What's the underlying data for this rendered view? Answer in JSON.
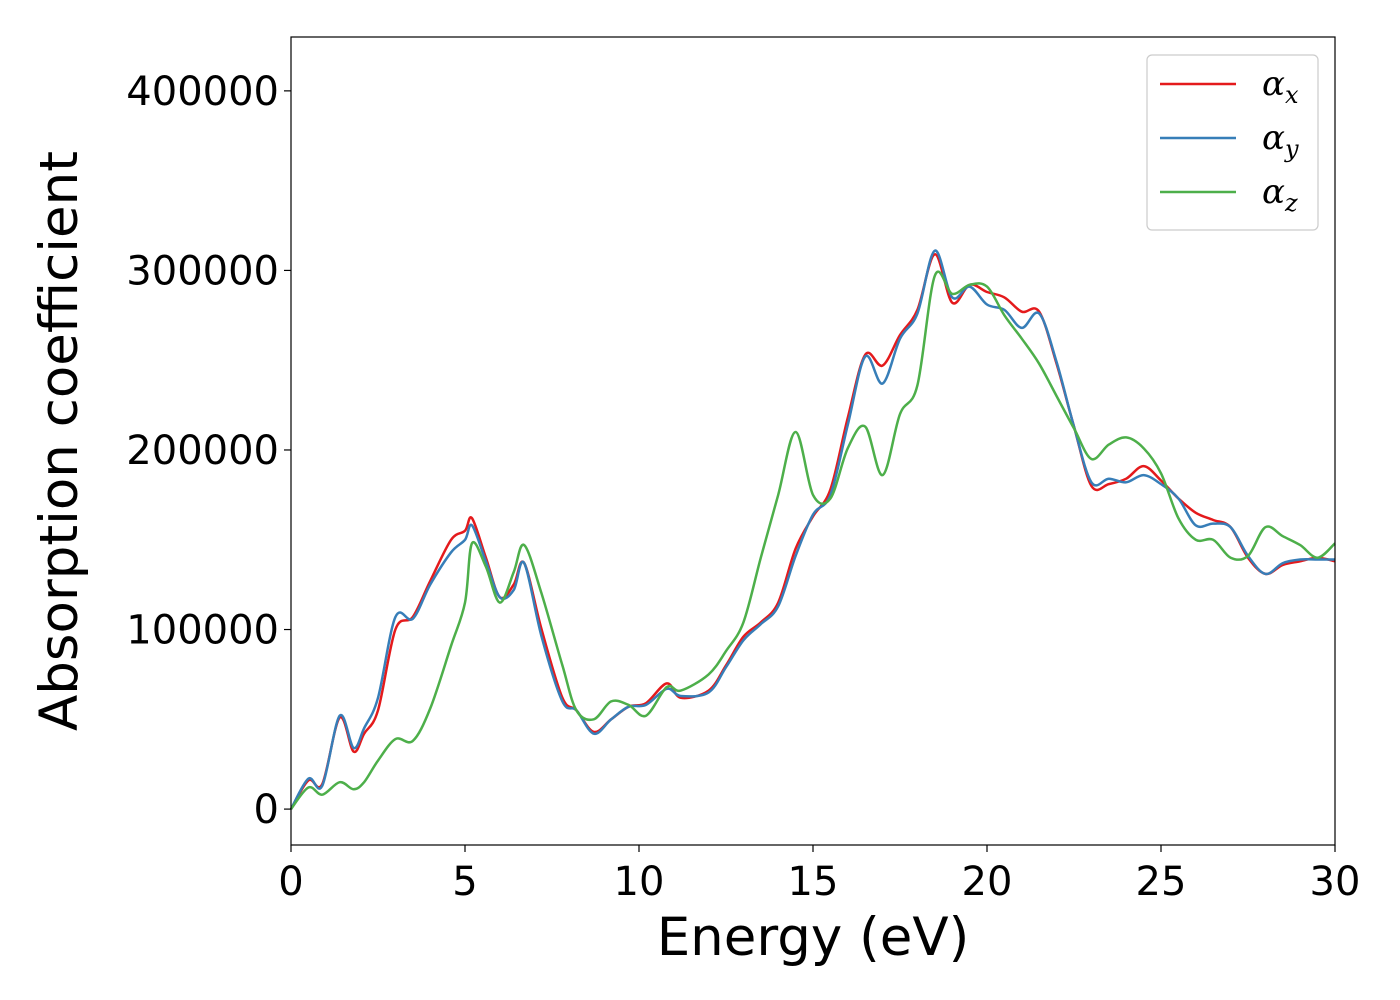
{
  "chart_data": {
    "type": "line",
    "xlabel": "Energy (eV)",
    "ylabel": "Absorption coefficient",
    "xlim": [
      0,
      30
    ],
    "ylim": [
      -20000,
      430000
    ],
    "xticks": [
      0,
      5,
      10,
      15,
      20,
      25,
      30
    ],
    "yticks": [
      0,
      100000,
      200000,
      300000,
      400000
    ],
    "grid": false,
    "legend_position": "top-right",
    "series": [
      {
        "name": "α_x",
        "legend_base": "α",
        "legend_sub": "x",
        "color": "#e41a1c",
        "x": [
          0,
          0.5,
          0.9,
          1.4,
          1.8,
          2.1,
          2.5,
          3.0,
          3.5,
          4.0,
          4.6,
          5.0,
          5.2,
          5.6,
          6.0,
          6.4,
          6.7,
          7.2,
          7.8,
          8.2,
          8.7,
          9.2,
          9.7,
          10.2,
          10.8,
          11.2,
          12.0,
          12.5,
          13.0,
          13.5,
          14.0,
          14.5,
          15.0,
          15.5,
          16.0,
          16.5,
          17.0,
          17.5,
          18.0,
          18.5,
          19.0,
          19.5,
          20.0,
          20.5,
          21.0,
          21.5,
          22.0,
          22.5,
          23.0,
          23.5,
          24.0,
          24.5,
          25.0,
          25.5,
          26.0,
          26.5,
          27.0,
          27.5,
          28.0,
          28.5,
          29.0,
          29.5,
          30.0
        ],
        "values": [
          0,
          16000,
          14000,
          51000,
          32000,
          42000,
          55000,
          100000,
          107000,
          127000,
          150000,
          155000,
          162000,
          140000,
          118000,
          125000,
          137000,
          100000,
          62000,
          55000,
          43000,
          50000,
          57000,
          59000,
          70000,
          62000,
          66000,
          80000,
          96000,
          104000,
          115000,
          145000,
          163000,
          178000,
          218000,
          253000,
          247000,
          264000,
          278000,
          309000,
          282000,
          292000,
          288000,
          285000,
          277000,
          277000,
          248000,
          213000,
          180000,
          181000,
          184000,
          191000,
          183000,
          173000,
          165000,
          161000,
          157000,
          140000,
          131000,
          136000,
          138000,
          140000,
          138000
        ]
      },
      {
        "name": "α_y",
        "legend_base": "α",
        "legend_sub": "y",
        "color": "#377eb8",
        "x": [
          0,
          0.5,
          0.9,
          1.4,
          1.8,
          2.1,
          2.5,
          3.0,
          3.5,
          4.0,
          4.6,
          5.0,
          5.2,
          5.6,
          6.0,
          6.4,
          6.7,
          7.2,
          7.8,
          8.2,
          8.7,
          9.2,
          9.7,
          10.2,
          10.8,
          11.2,
          12.0,
          12.5,
          13.0,
          13.5,
          14.0,
          14.5,
          15.0,
          15.5,
          16.0,
          16.5,
          17.0,
          17.5,
          18.0,
          18.5,
          19.0,
          19.5,
          20.0,
          20.5,
          21.0,
          21.5,
          22.0,
          22.5,
          23.0,
          23.5,
          24.0,
          24.5,
          25.0,
          25.5,
          26.0,
          26.5,
          27.0,
          27.5,
          28.0,
          28.5,
          29.0,
          29.5,
          30.0
        ],
        "values": [
          0,
          17000,
          13000,
          52000,
          34000,
          45000,
          62000,
          107000,
          106000,
          125000,
          143000,
          150000,
          158000,
          138000,
          118000,
          122000,
          137000,
          96000,
          60000,
          55000,
          42000,
          50000,
          57000,
          58000,
          67000,
          63000,
          65000,
          79000,
          94000,
          103000,
          113000,
          141000,
          164000,
          175000,
          214000,
          252000,
          237000,
          262000,
          276000,
          311000,
          285000,
          291000,
          281000,
          278000,
          268000,
          276000,
          249000,
          213000,
          182000,
          184000,
          182000,
          186000,
          181000,
          173000,
          158000,
          159000,
          157000,
          141000,
          131000,
          137000,
          139000,
          139000,
          139000
        ]
      },
      {
        "name": "α_z",
        "legend_base": "α",
        "legend_sub": "z",
        "color": "#4daf4a",
        "x": [
          0,
          0.5,
          0.9,
          1.4,
          1.8,
          2.1,
          2.5,
          3.0,
          3.5,
          4.0,
          4.6,
          5.0,
          5.2,
          5.6,
          6.0,
          6.4,
          6.7,
          7.2,
          7.8,
          8.2,
          8.7,
          9.2,
          9.7,
          10.2,
          10.8,
          11.2,
          12.0,
          12.5,
          13.0,
          13.5,
          14.0,
          14.5,
          15.0,
          15.5,
          16.0,
          16.5,
          17.0,
          17.5,
          18.0,
          18.5,
          19.0,
          19.5,
          20.0,
          20.5,
          21.0,
          21.5,
          22.0,
          22.5,
          23.0,
          23.5,
          24.0,
          24.5,
          25.0,
          25.5,
          26.0,
          26.5,
          27.0,
          27.5,
          28.0,
          28.5,
          29.0,
          29.5,
          30.0
        ],
        "values": [
          0,
          12000,
          8000,
          15000,
          11000,
          15000,
          27000,
          39000,
          38000,
          56000,
          91000,
          115000,
          148000,
          135000,
          115000,
          132000,
          147000,
          120000,
          80000,
          55000,
          50000,
          60000,
          58000,
          52000,
          68000,
          66000,
          75000,
          88000,
          104000,
          140000,
          175000,
          210000,
          175000,
          173000,
          201000,
          213000,
          186000,
          220000,
          236000,
          297000,
          287000,
          292000,
          291000,
          275000,
          262000,
          248000,
          230000,
          212000,
          195000,
          203000,
          207000,
          201000,
          187000,
          162000,
          150000,
          150000,
          140000,
          141000,
          157000,
          152000,
          147000,
          140000,
          148000
        ]
      }
    ]
  }
}
